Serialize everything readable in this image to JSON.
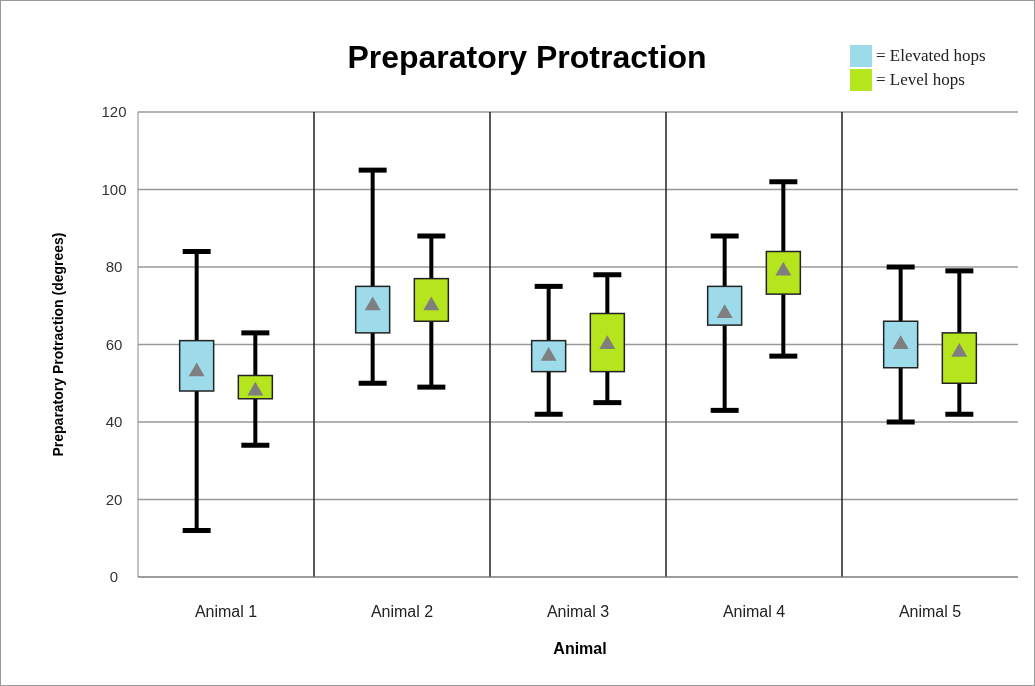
{
  "chart_data": {
    "type": "box",
    "title": "Preparatory Protraction",
    "xlabel": "Animal",
    "ylabel": "Preparatory Protraction  (degrees)",
    "categories": [
      "Animal 1",
      "Animal 2",
      "Animal 3",
      "Animal 4",
      "Animal 5"
    ],
    "series": [
      {
        "name": "= Elevated hops",
        "color": "#9ddaea",
        "boxes": [
          {
            "low": 12,
            "q1": 48,
            "q3": 61,
            "high": 84,
            "mean": 53
          },
          {
            "low": 50,
            "q1": 63,
            "q3": 75,
            "high": 105,
            "mean": 70
          },
          {
            "low": 42,
            "q1": 53,
            "q3": 61,
            "high": 75,
            "mean": 57
          },
          {
            "low": 43,
            "q1": 65,
            "q3": 75,
            "high": 88,
            "mean": 68
          },
          {
            "low": 40,
            "q1": 54,
            "q3": 66,
            "high": 80,
            "mean": 60
          }
        ]
      },
      {
        "name": "= Level hops",
        "color": "#b5e61d",
        "boxes": [
          {
            "low": 34,
            "q1": 46,
            "q3": 52,
            "high": 63,
            "mean": 48
          },
          {
            "low": 49,
            "q1": 66,
            "q3": 77,
            "high": 88,
            "mean": 70
          },
          {
            "low": 45,
            "q1": 53,
            "q3": 68,
            "high": 78,
            "mean": 60
          },
          {
            "low": 57,
            "q1": 73,
            "q3": 84,
            "high": 102,
            "mean": 79
          },
          {
            "low": 42,
            "q1": 50,
            "q3": 63,
            "high": 79,
            "mean": 58
          }
        ]
      }
    ],
    "ylim": [
      0,
      120
    ],
    "yticks": [
      0,
      20,
      40,
      60,
      80,
      100,
      120
    ],
    "grid": true,
    "legend": "top right",
    "marker": "triangle"
  }
}
